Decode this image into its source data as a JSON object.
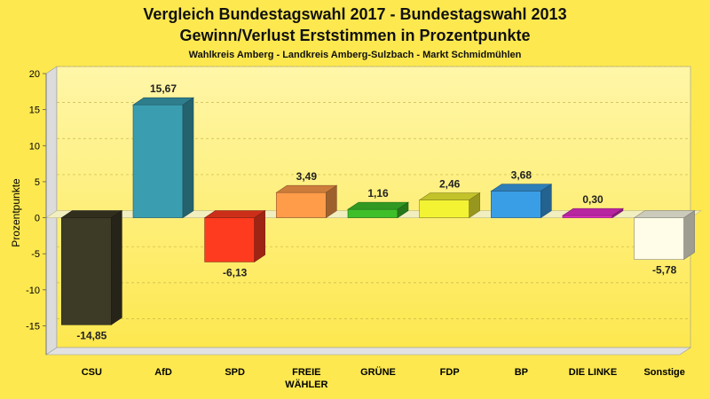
{
  "chart_data": {
    "type": "bar",
    "title": "Vergleich Bundestagswahl 2017 - Bundestagswahl 2013",
    "title2": "Gewinn/Verlust Erststimmen in Prozentpunkte",
    "subtitle": "Wahlkreis Amberg - Landkreis Amberg-Sulzbach - Markt Schmidmühlen",
    "ylabel": "Prozentpunkte",
    "xlabel": "",
    "categories": [
      "CSU",
      "AfD",
      "SPD",
      "FREIE WÄHLER",
      "GRÜNE",
      "FDP",
      "BP",
      "DIE LINKE",
      "Sonstige"
    ],
    "values": [
      -14.85,
      15.67,
      -6.13,
      3.49,
      1.16,
      2.46,
      3.68,
      0.3,
      -5.78
    ],
    "value_labels": [
      "-14,85",
      "15,67",
      "-6,13",
      "3,49",
      "1,16",
      "2,46",
      "3,68",
      "0,30",
      "-5,78"
    ],
    "colors": [
      "#3d3a26",
      "#3a9eb0",
      "#ff3b1f",
      "#ff9c4a",
      "#3dbf2a",
      "#f3f334",
      "#3a9ee6",
      "#e52ec8",
      "#fffde8"
    ],
    "ylim": [
      -19,
      20
    ],
    "yticks": [
      -15,
      -10,
      -5,
      0,
      5,
      10,
      15,
      20
    ],
    "ytick_labels": [
      "-15",
      "-10",
      "-5",
      "0",
      "5",
      "10",
      "15",
      "20"
    ],
    "grid": true,
    "legend": "none",
    "background": "#fde84f"
  }
}
